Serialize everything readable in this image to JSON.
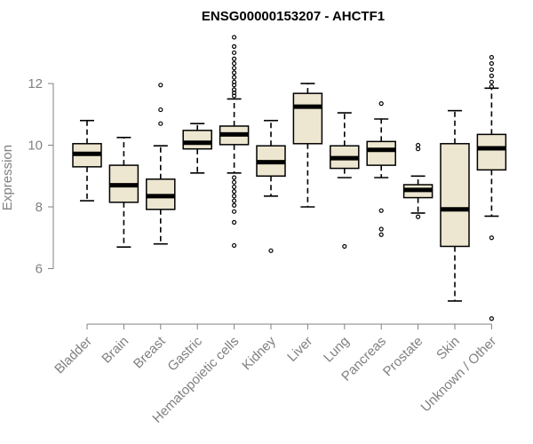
{
  "chart_data": {
    "type": "boxplot",
    "title": "ENSG00000153207 - AHCTF1",
    "ylabel": "Expression",
    "xlabel": "",
    "ylim": [
      4.2,
      13.7
    ],
    "yticks": [
      6,
      8,
      10,
      12
    ],
    "grid": false,
    "box_color": "#ede6d0",
    "categories": [
      "Bladder",
      "Brain",
      "Breast",
      "Gastric",
      "Hematopoietic cells",
      "Kidney",
      "Liver",
      "Lung",
      "Pancreas",
      "Prostate",
      "Skin",
      "Unknown / Other"
    ],
    "boxes": [
      {
        "whisker_low": 8.2,
        "q1": 9.3,
        "median": 9.72,
        "q3": 10.05,
        "whisker_high": 10.8,
        "outliers": []
      },
      {
        "whisker_low": 6.7,
        "q1": 8.15,
        "median": 8.7,
        "q3": 9.35,
        "whisker_high": 10.25,
        "outliers": []
      },
      {
        "whisker_low": 6.8,
        "q1": 7.92,
        "median": 8.35,
        "q3": 8.9,
        "whisker_high": 9.98,
        "outliers": [
          10.7,
          11.15,
          11.95
        ]
      },
      {
        "whisker_low": 9.1,
        "q1": 9.88,
        "median": 10.08,
        "q3": 10.48,
        "whisker_high": 10.7,
        "outliers": []
      },
      {
        "whisker_low": 9.1,
        "q1": 10.02,
        "median": 10.35,
        "q3": 10.62,
        "whisker_high": 11.5,
        "outliers": [
          6.75,
          7.5,
          7.85,
          8.05,
          8.2,
          8.35,
          8.5,
          8.65,
          8.8,
          8.95,
          11.6,
          11.7,
          11.8,
          11.95,
          12.05,
          12.2,
          12.35,
          12.5,
          12.65,
          12.8,
          13.0,
          13.2,
          13.5
        ]
      },
      {
        "whisker_low": 8.35,
        "q1": 9.0,
        "median": 9.45,
        "q3": 9.98,
        "whisker_high": 10.8,
        "outliers": [
          6.58
        ]
      },
      {
        "whisker_low": 8.0,
        "q1": 10.05,
        "median": 11.25,
        "q3": 11.68,
        "whisker_high": 12.0,
        "outliers": []
      },
      {
        "whisker_low": 8.95,
        "q1": 9.25,
        "median": 9.58,
        "q3": 9.98,
        "whisker_high": 11.05,
        "outliers": [
          6.72
        ]
      },
      {
        "whisker_low": 8.95,
        "q1": 9.35,
        "median": 9.85,
        "q3": 10.12,
        "whisker_high": 10.85,
        "outliers": [
          7.1,
          7.28,
          7.88,
          11.35
        ]
      },
      {
        "whisker_low": 7.8,
        "q1": 8.3,
        "median": 8.55,
        "q3": 8.72,
        "whisker_high": 9.0,
        "outliers": [
          7.68,
          9.88,
          10.0
        ]
      },
      {
        "whisker_low": 4.95,
        "q1": 6.72,
        "median": 7.92,
        "q3": 10.05,
        "whisker_high": 11.12,
        "outliers": []
      },
      {
        "whisker_low": 7.7,
        "q1": 9.2,
        "median": 9.9,
        "q3": 10.35,
        "whisker_high": 11.85,
        "outliers": [
          4.38,
          7.0,
          11.9,
          12.05,
          12.25,
          12.45,
          12.65,
          12.85
        ]
      }
    ]
  }
}
